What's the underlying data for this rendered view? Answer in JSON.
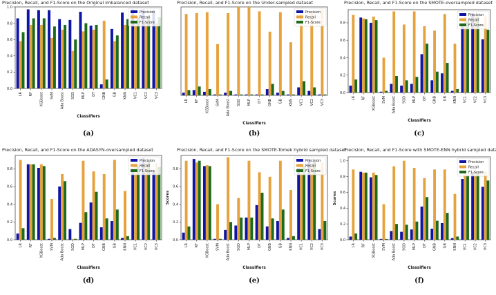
{
  "series_colors": {
    "Precision": "#0d14a6",
    "Recall": "#e6a23c",
    "F1-Score": "#1e6b1e"
  },
  "chart_data": [
    {
      "type": "bar",
      "label": "(a)",
      "title": "Precision, Recall, and F1-Score on the Original imbalanced dataset",
      "xlabel": "Classifiers",
      "ylabel": "",
      "ylim": [
        0,
        1.0
      ],
      "yticks": [
        "0.0",
        "0.2",
        "0.4",
        "0.6",
        "0.8",
        "1.0"
      ],
      "legend_position": "top-right",
      "categories": [
        "LR",
        "RF",
        "XGBoost",
        "SVM",
        "Ada Boost",
        "SGD",
        "MLP",
        "DT",
        "GNB",
        "GB",
        "KNN",
        "VC1",
        "VC2",
        "VC3"
      ],
      "series": [
        {
          "name": "Precision",
          "values": [
            0.86,
            0.97,
            0.96,
            0.96,
            0.85,
            0.84,
            0.94,
            0.77,
            0.05,
            0.73,
            0.93,
            0.97,
            0.97,
            0.96
          ]
        },
        {
          "name": "Recall",
          "values": [
            0.58,
            0.78,
            0.78,
            0.62,
            0.72,
            0.46,
            0.7,
            0.72,
            0.83,
            0.58,
            0.78,
            0.8,
            0.8,
            0.8
          ]
        },
        {
          "name": "F1-Score",
          "values": [
            0.69,
            0.86,
            0.86,
            0.76,
            0.78,
            0.6,
            0.8,
            0.78,
            0.11,
            0.65,
            0.85,
            0.87,
            0.88,
            0.87
          ]
        }
      ]
    },
    {
      "type": "bar",
      "label": "(b)",
      "title": "Precision, Recall, and F1-Score on the Under-sampled dataset",
      "xlabel": "Classifiers",
      "ylabel": "",
      "ylim": [
        0,
        1.0
      ],
      "yticks": [],
      "legend_position": "top-right",
      "categories": [
        "LR",
        "RF",
        "XGBoost",
        "SVM",
        "Ada Boost",
        "SGD",
        "MLP",
        "DT",
        "GNB",
        "GB",
        "KNN",
        "VC1",
        "VC2",
        "VC3"
      ],
      "series": [
        {
          "name": "Precision",
          "values": [
            0.03,
            0.06,
            0.04,
            0.01,
            0.03,
            0.01,
            0.01,
            0.01,
            0.07,
            0.03,
            0.01,
            0.09,
            0.05,
            0.01
          ]
        },
        {
          "name": "Recall",
          "values": [
            0.92,
            0.93,
            0.94,
            0.58,
            0.93,
            1.0,
            1.0,
            0.95,
            0.72,
            0.94,
            0.6,
            0.93,
            0.94,
            0.97
          ]
        },
        {
          "name": "F1-Score",
          "values": [
            0.06,
            0.1,
            0.07,
            0.01,
            0.05,
            0.01,
            0.01,
            0.01,
            0.13,
            0.05,
            0.01,
            0.16,
            0.09,
            0.01
          ]
        }
      ]
    },
    {
      "type": "bar",
      "label": "(c)",
      "title": "Precision, Recall, and F1-Score on the SMOTE-oversampled dataset",
      "xlabel": "Classifiers",
      "ylabel": "",
      "ylim": [
        0,
        0.95
      ],
      "yticks": [
        "0.0",
        "0.2",
        "0.4",
        "0.6",
        "0.8"
      ],
      "legend_position": "top-right",
      "categories": [
        "LR",
        "RF",
        "XGBoost",
        "SVM",
        "Ada Boost",
        "SGD",
        "MLP",
        "DT",
        "GNB",
        "GB",
        "KNN",
        "VC1",
        "VC2",
        "VC3"
      ],
      "series": [
        {
          "name": "Precision",
          "values": [
            0.08,
            0.86,
            0.8,
            0.01,
            0.1,
            0.08,
            0.1,
            0.44,
            0.14,
            0.22,
            0.02,
            0.78,
            0.91,
            0.61
          ]
        },
        {
          "name": "Recall",
          "values": [
            0.89,
            0.85,
            0.87,
            0.4,
            0.93,
            0.78,
            0.93,
            0.76,
            0.71,
            0.9,
            0.56,
            0.87,
            0.88,
            0.87
          ]
        },
        {
          "name": "F1-Score",
          "values": [
            0.15,
            0.84,
            0.83,
            0.02,
            0.19,
            0.14,
            0.18,
            0.56,
            0.24,
            0.34,
            0.04,
            0.82,
            0.87,
            0.72
          ]
        }
      ]
    },
    {
      "type": "bar",
      "label": "(d)",
      "title": "Precision, Recall, and F1-Score on the ADASYN-oversampled dataset",
      "xlabel": "Classifiers",
      "ylabel": "",
      "ylim": [
        0,
        0.95
      ],
      "yticks": [
        "0.0",
        "0.2",
        "0.4",
        "0.6",
        "0.8"
      ],
      "legend_position": "top-right",
      "categories": [
        "LR",
        "RF",
        "XGBoost",
        "SVM",
        "Ada Boost",
        "SGD",
        "MLP",
        "DT",
        "GNB",
        "GB",
        "KNN",
        "VC1",
        "VC2",
        "VC3"
      ],
      "series": [
        {
          "name": "Precision",
          "values": [
            0.07,
            0.85,
            0.81,
            0.01,
            0.6,
            0.12,
            0.19,
            0.42,
            0.14,
            0.21,
            0.02,
            0.8,
            0.92,
            0.78
          ]
        },
        {
          "name": "Recall",
          "values": [
            0.9,
            0.85,
            0.85,
            0.46,
            0.74,
            0.01,
            0.89,
            0.77,
            0.74,
            0.9,
            0.55,
            0.86,
            0.87,
            0.86
          ]
        },
        {
          "name": "F1-Score",
          "values": [
            0.13,
            0.85,
            0.83,
            0.02,
            0.66,
            0.01,
            0.31,
            0.54,
            0.24,
            0.34,
            0.04,
            0.83,
            0.89,
            0.82
          ]
        }
      ]
    },
    {
      "type": "bar",
      "label": "(e)",
      "title": "Precision, Recall, and F1-Score on the SMOTE-Tomek hybrid sampled dataset",
      "xlabel": "Classifiers",
      "ylabel": "Scores",
      "ylim": [
        0,
        0.95
      ],
      "yticks": [
        "0.0",
        "0.2",
        "0.4",
        "0.6",
        "0.8"
      ],
      "legend_position": "top-right",
      "categories": [
        "LR",
        "RF",
        "XGBoost",
        "SVM",
        "Ada Boost",
        "SGD",
        "MLP",
        "DT",
        "GNB",
        "GB",
        "KNN",
        "VC1",
        "VC2",
        "VC3"
      ],
      "series": [
        {
          "name": "Precision",
          "values": [
            0.08,
            0.91,
            0.83,
            0.01,
            0.11,
            0.16,
            0.25,
            0.39,
            0.15,
            0.21,
            0.02,
            0.81,
            0.91,
            0.12
          ]
        },
        {
          "name": "Recall",
          "values": [
            0.89,
            0.87,
            0.84,
            0.4,
            0.93,
            0.47,
            0.89,
            0.76,
            0.71,
            0.89,
            0.56,
            0.85,
            0.86,
            0.87
          ]
        },
        {
          "name": "F1-Score",
          "values": [
            0.15,
            0.89,
            0.83,
            0.01,
            0.2,
            0.25,
            0.25,
            0.53,
            0.24,
            0.34,
            0.04,
            0.83,
            0.88,
            0.21
          ]
        }
      ]
    },
    {
      "type": "bar",
      "label": "(f)",
      "title": "Precision, Recall, and F1-Score with SMOTE-ENN hybrid sampled dataset",
      "xlabel": "Classifiers",
      "ylabel": "Scores",
      "ylim": [
        0,
        1.05
      ],
      "yticks": [
        "0.0",
        "0.2",
        "0.4",
        "0.6",
        "0.8",
        "1.0"
      ],
      "legend_position": "top-right",
      "categories": [
        "LR",
        "RF",
        "XGBoost",
        "SVM",
        "Ada Boost",
        "SGD",
        "MLP",
        "DT",
        "GNB",
        "GB",
        "KNN",
        "VC1",
        "VC2",
        "VC3"
      ],
      "series": [
        {
          "name": "Precision",
          "values": [
            0.04,
            0.86,
            0.79,
            0.01,
            0.11,
            0.1,
            0.13,
            0.42,
            0.14,
            0.21,
            0.02,
            0.77,
            0.85,
            0.67
          ]
        },
        {
          "name": "Recall",
          "values": [
            0.89,
            0.85,
            0.85,
            0.45,
            0.93,
            1.0,
            0.91,
            0.78,
            0.89,
            0.89,
            0.58,
            0.88,
            0.86,
            0.86
          ]
        },
        {
          "name": "F1-Score",
          "values": [
            0.08,
            0.85,
            0.82,
            0.01,
            0.2,
            0.19,
            0.23,
            0.54,
            0.24,
            0.34,
            0.04,
            0.82,
            0.86,
            0.75
          ]
        }
      ]
    }
  ]
}
